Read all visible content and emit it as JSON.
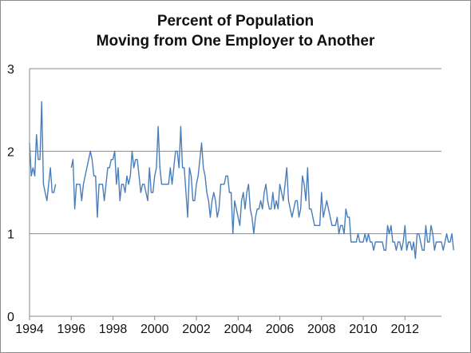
{
  "chart_data": {
    "type": "line",
    "title_lines": [
      "Percent of Population",
      "Moving from One Employer to Another"
    ],
    "xlabel": "",
    "ylabel": "",
    "x_range": [
      1994,
      2013.75
    ],
    "ylim": [
      0,
      3
    ],
    "y_ticks": [
      0,
      1,
      2,
      3
    ],
    "x_ticks": [
      1994,
      1996,
      1998,
      2000,
      2002,
      2004,
      2006,
      2008,
      2010,
      2012
    ],
    "grid": "horizontal",
    "legend": "none",
    "series": [
      {
        "color": "#4a7ebb",
        "start": 1994,
        "step_months": 1,
        "values": [
          2.1,
          1.7,
          1.8,
          1.7,
          2.2,
          1.9,
          1.9,
          2.6,
          1.6,
          1.5,
          1.4,
          1.6,
          1.8,
          1.5,
          1.5,
          1.6,
          null,
          null,
          null,
          null,
          null,
          null,
          null,
          null,
          1.8,
          1.9,
          1.3,
          1.6,
          1.6,
          1.6,
          1.4,
          1.6,
          1.7,
          1.8,
          1.9,
          2.0,
          1.9,
          1.7,
          1.7,
          1.2,
          1.6,
          1.6,
          1.6,
          1.4,
          1.6,
          1.8,
          1.8,
          1.9,
          1.9,
          2.0,
          1.6,
          1.8,
          1.4,
          1.6,
          1.6,
          1.5,
          1.7,
          1.6,
          1.7,
          2.0,
          1.8,
          1.9,
          1.9,
          1.7,
          1.5,
          1.6,
          1.6,
          1.5,
          1.4,
          1.8,
          1.5,
          1.5,
          1.7,
          1.8,
          2.3,
          1.8,
          1.6,
          1.6,
          1.6,
          1.6,
          1.6,
          1.8,
          1.6,
          1.8,
          2.0,
          2.0,
          1.8,
          2.3,
          1.8,
          1.8,
          1.5,
          1.2,
          1.8,
          1.7,
          1.4,
          1.4,
          1.6,
          1.7,
          1.9,
          2.1,
          1.8,
          1.7,
          1.5,
          1.4,
          1.2,
          1.4,
          1.5,
          1.4,
          1.2,
          1.3,
          1.6,
          1.6,
          1.6,
          1.7,
          1.7,
          1.5,
          1.5,
          1.0,
          1.4,
          1.3,
          1.2,
          1.1,
          1.4,
          1.5,
          1.3,
          1.5,
          1.6,
          1.3,
          1.2,
          1.0,
          1.2,
          1.3,
          1.3,
          1.4,
          1.3,
          1.5,
          1.6,
          1.4,
          1.3,
          1.3,
          1.5,
          1.3,
          1.4,
          1.3,
          1.6,
          1.5,
          1.4,
          1.6,
          1.8,
          1.4,
          1.3,
          1.2,
          1.3,
          1.4,
          1.4,
          1.2,
          1.3,
          1.7,
          1.6,
          1.4,
          1.8,
          1.3,
          1.3,
          1.2,
          1.1,
          1.1,
          1.1,
          1.1,
          1.5,
          1.2,
          1.3,
          1.4,
          1.3,
          1.2,
          1.1,
          1.1,
          1.1,
          1.2,
          1.0,
          1.1,
          1.1,
          1.0,
          1.3,
          1.2,
          1.2,
          0.9,
          0.9,
          0.9,
          0.9,
          1.0,
          0.9,
          0.9,
          0.9,
          1.0,
          0.9,
          1.0,
          0.9,
          0.9,
          0.8,
          0.9,
          0.9,
          0.9,
          0.9,
          0.9,
          0.8,
          0.8,
          1.1,
          1.0,
          1.1,
          0.9,
          0.9,
          0.8,
          0.9,
          0.9,
          0.8,
          0.9,
          1.1,
          0.8,
          0.9,
          0.9,
          0.8,
          0.9,
          0.7,
          1.0,
          1.0,
          0.9,
          0.8,
          0.8,
          1.1,
          0.9,
          0.9,
          1.1,
          1.0,
          0.8,
          0.9,
          0.9,
          0.9,
          0.9,
          0.8,
          0.9,
          1.0,
          0.9,
          0.9,
          1.0,
          0.8
        ]
      }
    ]
  }
}
